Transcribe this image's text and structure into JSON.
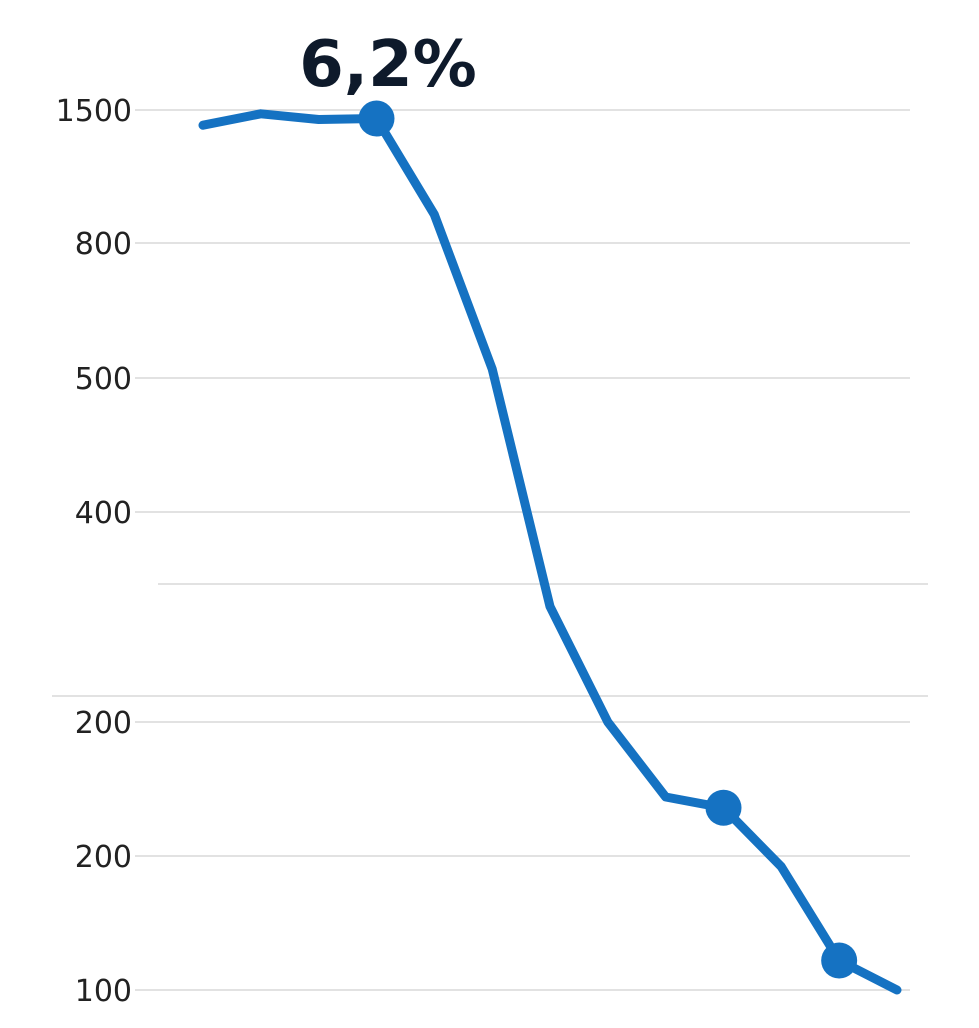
{
  "chart_data": {
    "type": "line",
    "title": "",
    "xlabel": "",
    "ylabel": "",
    "y_tick_labels": [
      "1500",
      "800",
      "500",
      "400",
      "",
      "200",
      "200",
      "100"
    ],
    "grid": true,
    "annotation": "6,2%",
    "series": [
      {
        "color": "#1572c2",
        "points": [
          {
            "x": 1,
            "y": 1420
          },
          {
            "x": 2,
            "y": 1480
          },
          {
            "x": 3,
            "y": 1450
          },
          {
            "x": 4,
            "y": 1455,
            "marker": true
          },
          {
            "x": 5,
            "y": 950
          },
          {
            "x": 6,
            "y": 520
          },
          {
            "x": 7,
            "y": 310
          },
          {
            "x": 8,
            "y": 200
          },
          {
            "x": 9,
            "y": 172
          },
          {
            "x": 10,
            "y": 168,
            "marker": true
          },
          {
            "x": 11,
            "y": 146
          },
          {
            "x": 12,
            "y": 111,
            "marker": true
          },
          {
            "x": 13,
            "y": 100
          }
        ]
      }
    ]
  }
}
